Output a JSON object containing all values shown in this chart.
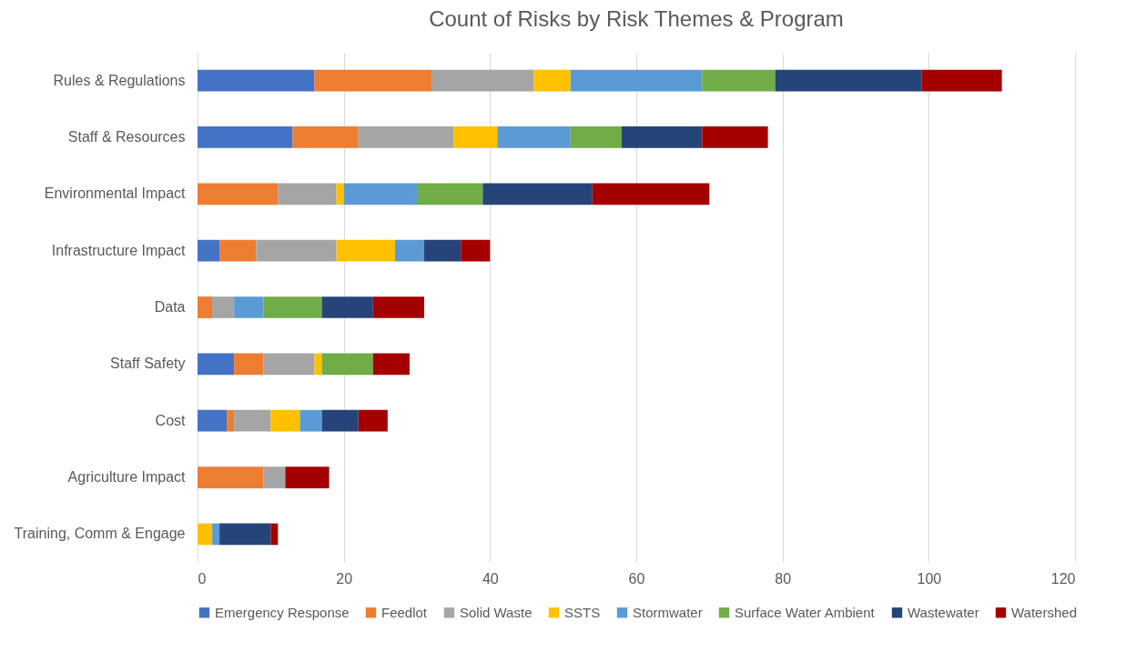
{
  "chart_data": {
    "type": "bar",
    "orientation": "horizontal",
    "stacked": true,
    "title": "Count of Risks by Risk Themes & Program",
    "categories": [
      "Rules & Regulations",
      "Staff & Resources",
      "Environmental Impact",
      "Infrastructure Impact",
      "Data",
      "Staff Safety",
      "Cost",
      "Agriculture Impact",
      "Training, Comm & Engage"
    ],
    "series": [
      {
        "name": "Emergency Response",
        "color": "#4472c4",
        "values": [
          16,
          13,
          0,
          3,
          0,
          5,
          4,
          0,
          0
        ]
      },
      {
        "name": "Feedlot",
        "color": "#ed7d31",
        "values": [
          16,
          9,
          11,
          5,
          2,
          4,
          1,
          9,
          0
        ]
      },
      {
        "name": "Solid Waste",
        "color": "#a5a5a5",
        "values": [
          14,
          13,
          8,
          11,
          3,
          7,
          5,
          3,
          0
        ]
      },
      {
        "name": "SSTS",
        "color": "#ffc000",
        "values": [
          5,
          6,
          1,
          8,
          0,
          1,
          4,
          0,
          2
        ]
      },
      {
        "name": "Stormwater",
        "color": "#5b9bd5",
        "values": [
          18,
          10,
          10,
          4,
          4,
          0,
          3,
          0,
          1
        ]
      },
      {
        "name": "Surface Water Ambient",
        "color": "#70ad47",
        "values": [
          10,
          7,
          9,
          0,
          8,
          7,
          0,
          0,
          0
        ]
      },
      {
        "name": "Wastewater",
        "color": "#264478",
        "values": [
          20,
          11,
          15,
          5,
          7,
          0,
          5,
          0,
          7
        ]
      },
      {
        "name": "Watershed",
        "color": "#a50000",
        "values": [
          11,
          9,
          16,
          4,
          7,
          5,
          4,
          6,
          1
        ]
      }
    ],
    "xlim": [
      0,
      120
    ],
    "xticks": [
      0,
      20,
      40,
      60,
      80,
      100,
      120
    ],
    "grid": "x",
    "legend": "bottom"
  }
}
